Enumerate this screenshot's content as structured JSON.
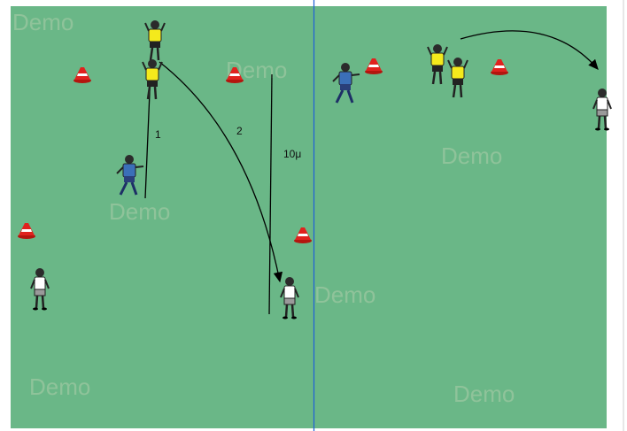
{
  "colors": {
    "pitch": "#6ab787",
    "divider": "#1f5fd6",
    "cone": "#e0221e",
    "defender_shirt": "#f4ea1c",
    "attacker_shirt": "#ffffff",
    "coach_shirt": "#3b6fb8"
  },
  "watermark": "Demo",
  "labels": {
    "pass_1": "1",
    "pass_2": "2",
    "distance": "10μ"
  },
  "icons": [
    "cone-icon",
    "player-icon",
    "pass-arrow-icon"
  ]
}
